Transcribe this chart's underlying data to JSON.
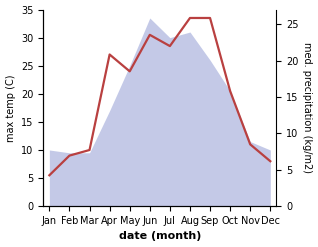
{
  "months": [
    "Jan",
    "Feb",
    "Mar",
    "Apr",
    "May",
    "Jun",
    "Jul",
    "Aug",
    "Sep",
    "Oct",
    "Nov",
    "Dec"
  ],
  "temperature": [
    5.5,
    9.0,
    10.0,
    27.0,
    24.0,
    30.5,
    28.5,
    33.5,
    33.5,
    20.5,
    11.0,
    8.0
  ],
  "precipitation": [
    10.0,
    9.5,
    9.5,
    17.0,
    25.0,
    33.5,
    30.0,
    31.0,
    26.0,
    20.5,
    11.5,
    10.0
  ],
  "temp_color": "#b94040",
  "precip_color": "#b0b8e0",
  "precip_alpha": 0.75,
  "ylim_left": [
    0,
    35
  ],
  "ylim_right": [
    0,
    27
  ],
  "yticks_left": [
    0,
    5,
    10,
    15,
    20,
    25,
    30,
    35
  ],
  "yticks_right": [
    0,
    5,
    10,
    15,
    20,
    25
  ],
  "ylabel_left": "max temp (C)",
  "ylabel_right": "med. precipitation (kg/m2)",
  "xlabel": "date (month)",
  "title": ""
}
